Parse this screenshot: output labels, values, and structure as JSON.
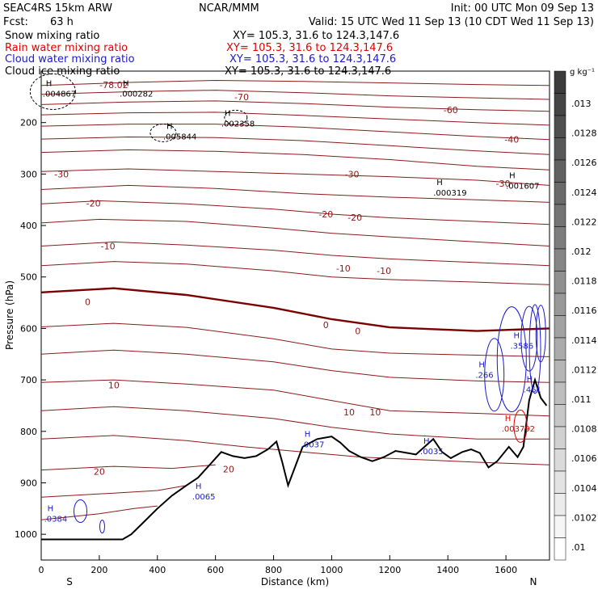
{
  "header": {
    "model": "SEAC4RS 15km ARW",
    "center": "NCAR/MMM",
    "init": "Init: 00 UTC Mon 09 Sep 13",
    "fcst_label": "Fcst:",
    "fcst_value": "63 h",
    "valid": "Valid: 15 UTC Wed 11 Sep 13 (10 CDT Wed 11 Sep 13)"
  },
  "fields": [
    {
      "name": "Snow mixing ratio",
      "xy": "XY= 105.3, 31.6 to 124.3,147.6",
      "color": "#000000"
    },
    {
      "name": "Rain water mixing ratio",
      "xy": "XY= 105.3, 31.6 to 124.3,147.6",
      "color": "#e00000"
    },
    {
      "name": "Cloud water mixing ratio",
      "xy": "XY= 105.3, 31.6 to 124.3,147.6",
      "color": "#1a1acd"
    },
    {
      "name": "Cloud ice mixing ratio",
      "xy": "XY= 105.3, 31.6 to 124.3,147.6",
      "color": "#000000"
    }
  ],
  "chart_data": {
    "type": "cross-section",
    "xlabel": "Distance (km)",
    "ylabel": "Pressure (hPa)",
    "xlim": [
      0,
      1750
    ],
    "ylim": [
      1050,
      100
    ],
    "x_ticks": [
      0,
      200,
      400,
      600,
      800,
      1000,
      1200,
      1400,
      1600
    ],
    "y_ticks": [
      200,
      300,
      400,
      500,
      600,
      700,
      800,
      900,
      1000
    ],
    "end_labels": {
      "left": "S",
      "right": "N"
    },
    "colorbar": {
      "unit": "g kg⁻¹",
      "labels": [
        ".013",
        ".0128",
        ".0126",
        ".0124",
        ".0122",
        ".012",
        ".0118",
        ".0116",
        ".0114",
        ".0112",
        ".011",
        ".0108",
        ".0106",
        ".0104",
        ".0102",
        ".01"
      ]
    },
    "temperature_contour_labels": [
      {
        "text": "-78.02",
        "x": 250,
        "p": 127
      },
      {
        "text": "-70",
        "x": 690,
        "p": 150
      },
      {
        "text": "-60",
        "x": 1410,
        "p": 175
      },
      {
        "text": "-40",
        "x": 1620,
        "p": 233
      },
      {
        "text": "-30",
        "x": 70,
        "p": 300
      },
      {
        "text": "-30",
        "x": 1070,
        "p": 300
      },
      {
        "text": "-30",
        "x": 1590,
        "p": 318
      },
      {
        "text": "-20",
        "x": 180,
        "p": 357
      },
      {
        "text": "-20",
        "x": 980,
        "p": 378
      },
      {
        "text": "-20",
        "x": 1080,
        "p": 384
      },
      {
        "text": "-10",
        "x": 230,
        "p": 440
      },
      {
        "text": "-10",
        "x": 1040,
        "p": 483
      },
      {
        "text": "-10",
        "x": 1180,
        "p": 488
      },
      {
        "text": "0",
        "x": 160,
        "p": 548
      },
      {
        "text": "0",
        "x": 980,
        "p": 593
      },
      {
        "text": "0",
        "x": 1090,
        "p": 605
      },
      {
        "text": "10",
        "x": 250,
        "p": 710
      },
      {
        "text": "10",
        "x": 1060,
        "p": 763
      },
      {
        "text": "10",
        "x": 1150,
        "p": 763
      },
      {
        "text": "20",
        "x": 200,
        "p": 878
      },
      {
        "text": "20",
        "x": 645,
        "p": 873
      }
    ],
    "maxima": [
      {
        "label": "H",
        "value": ".004867",
        "x": 5,
        "p": 137,
        "color": "#000000"
      },
      {
        "label": "H",
        "value": ".000282",
        "x": 270,
        "p": 137,
        "color": "#000000"
      },
      {
        "label": "H",
        "value": ".002358",
        "x": 620,
        "p": 195,
        "color": "#000000"
      },
      {
        "label": "H",
        "value": ".005844",
        "x": 420,
        "p": 220,
        "color": "#000000"
      },
      {
        "label": "H",
        "value": ".000319",
        "x": 1350,
        "p": 329,
        "color": "#000000"
      },
      {
        "label": "H",
        "value": ".001607",
        "x": 1600,
        "p": 316,
        "color": "#000000"
      },
      {
        "label": "H",
        "value": ".3586",
        "x": 1615,
        "p": 627,
        "color": "#1a1acd"
      },
      {
        "label": "H",
        "value": ".266",
        "x": 1495,
        "p": 683,
        "color": "#1a1acd"
      },
      {
        "label": "H",
        "value": ".461",
        "x": 1660,
        "p": 712,
        "color": "#1a1acd"
      },
      {
        "label": "H",
        "value": ".003792",
        "x": 1585,
        "p": 788,
        "color": "#e00000"
      },
      {
        "label": "H",
        "value": ".0037",
        "x": 895,
        "p": 818,
        "color": "#1a1acd"
      },
      {
        "label": "H",
        "value": ".0035",
        "x": 1305,
        "p": 832,
        "color": "#1a1acd"
      },
      {
        "label": "H",
        "value": ".0065",
        "x": 520,
        "p": 920,
        "color": "#1a1acd"
      },
      {
        "label": "H",
        "value": ".0384",
        "x": 10,
        "p": 963,
        "color": "#1a1acd"
      }
    ],
    "terrain": [
      [
        0,
        1010
      ],
      [
        280,
        1010
      ],
      [
        310,
        1000
      ],
      [
        350,
        978
      ],
      [
        400,
        950
      ],
      [
        450,
        925
      ],
      [
        500,
        905
      ],
      [
        540,
        890
      ],
      [
        580,
        865
      ],
      [
        620,
        840
      ],
      [
        660,
        848
      ],
      [
        700,
        852
      ],
      [
        740,
        848
      ],
      [
        780,
        835
      ],
      [
        810,
        820
      ],
      [
        830,
        860
      ],
      [
        850,
        905
      ],
      [
        870,
        875
      ],
      [
        900,
        830
      ],
      [
        950,
        815
      ],
      [
        1000,
        810
      ],
      [
        1030,
        822
      ],
      [
        1060,
        838
      ],
      [
        1100,
        850
      ],
      [
        1140,
        858
      ],
      [
        1180,
        850
      ],
      [
        1220,
        838
      ],
      [
        1260,
        842
      ],
      [
        1290,
        845
      ],
      [
        1320,
        830
      ],
      [
        1350,
        815
      ],
      [
        1380,
        840
      ],
      [
        1410,
        852
      ],
      [
        1450,
        840
      ],
      [
        1480,
        835
      ],
      [
        1510,
        842
      ],
      [
        1540,
        870
      ],
      [
        1570,
        858
      ],
      [
        1610,
        830
      ],
      [
        1640,
        850
      ],
      [
        1660,
        830
      ],
      [
        1680,
        740
      ],
      [
        1700,
        700
      ],
      [
        1720,
        735
      ],
      [
        1740,
        750
      ]
    ],
    "isotherms_hPa": [
      [
        [
          0,
          128
        ],
        [
          300,
          122
        ],
        [
          600,
          118
        ],
        [
          900,
          120
        ],
        [
          1200,
          123
        ],
        [
          1500,
          126
        ],
        [
          1750,
          128
        ]
      ],
      [
        [
          0,
          145
        ],
        [
          300,
          140
        ],
        [
          600,
          137
        ],
        [
          900,
          142
        ],
        [
          1200,
          148
        ],
        [
          1500,
          152
        ],
        [
          1750,
          155
        ]
      ],
      [
        [
          0,
          165
        ],
        [
          300,
          160
        ],
        [
          600,
          158
        ],
        [
          900,
          163
        ],
        [
          1200,
          170
        ],
        [
          1500,
          175
        ],
        [
          1750,
          178
        ]
      ],
      [
        [
          0,
          185
        ],
        [
          300,
          181
        ],
        [
          600,
          180
        ],
        [
          900,
          186
        ],
        [
          1200,
          193
        ],
        [
          1500,
          200
        ],
        [
          1750,
          205
        ]
      ],
      [
        [
          0,
          207
        ],
        [
          300,
          203
        ],
        [
          600,
          203
        ],
        [
          900,
          209
        ],
        [
          1200,
          218
        ],
        [
          1500,
          227
        ],
        [
          1750,
          233
        ]
      ],
      [
        [
          0,
          232
        ],
        [
          300,
          228
        ],
        [
          600,
          229
        ],
        [
          900,
          235
        ],
        [
          1200,
          245
        ],
        [
          1500,
          255
        ],
        [
          1750,
          262
        ]
      ],
      [
        [
          0,
          258
        ],
        [
          300,
          253
        ],
        [
          600,
          256
        ],
        [
          900,
          262
        ],
        [
          1200,
          272
        ],
        [
          1500,
          285
        ],
        [
          1750,
          292
        ]
      ],
      [
        [
          0,
          295
        ],
        [
          300,
          290
        ],
        [
          600,
          295
        ],
        [
          900,
          300
        ],
        [
          1200,
          305
        ],
        [
          1500,
          312
        ],
        [
          1750,
          322
        ]
      ],
      [
        [
          0,
          330
        ],
        [
          300,
          322
        ],
        [
          600,
          328
        ],
        [
          900,
          338
        ],
        [
          1200,
          345
        ],
        [
          1500,
          350
        ],
        [
          1750,
          355
        ]
      ],
      [
        [
          0,
          358
        ],
        [
          200,
          352
        ],
        [
          500,
          358
        ],
        [
          800,
          368
        ],
        [
          1000,
          378
        ],
        [
          1200,
          385
        ],
        [
          1500,
          392
        ],
        [
          1750,
          398
        ]
      ],
      [
        [
          0,
          395
        ],
        [
          200,
          388
        ],
        [
          500,
          392
        ],
        [
          800,
          405
        ],
        [
          1000,
          415
        ],
        [
          1200,
          422
        ],
        [
          1500,
          432
        ],
        [
          1750,
          440
        ]
      ],
      [
        [
          0,
          440
        ],
        [
          250,
          432
        ],
        [
          500,
          438
        ],
        [
          800,
          448
        ],
        [
          1000,
          458
        ],
        [
          1200,
          465
        ],
        [
          1500,
          472
        ],
        [
          1750,
          478
        ]
      ],
      [
        [
          0,
          478
        ],
        [
          250,
          470
        ],
        [
          500,
          475
        ],
        [
          800,
          488
        ],
        [
          1000,
          500
        ],
        [
          1200,
          505
        ],
        [
          1500,
          510
        ],
        [
          1750,
          515
        ]
      ],
      [
        [
          0,
          530
        ],
        [
          250,
          522
        ],
        [
          500,
          535
        ],
        [
          800,
          560
        ],
        [
          1000,
          582
        ],
        [
          1200,
          598
        ],
        [
          1500,
          605
        ],
        [
          1750,
          600
        ]
      ],
      [
        [
          0,
          597
        ],
        [
          250,
          590
        ],
        [
          500,
          598
        ],
        [
          800,
          620
        ],
        [
          1000,
          640
        ],
        [
          1200,
          648
        ],
        [
          1500,
          652
        ],
        [
          1750,
          655
        ]
      ],
      [
        [
          0,
          650
        ],
        [
          250,
          642
        ],
        [
          500,
          650
        ],
        [
          800,
          665
        ],
        [
          1000,
          682
        ],
        [
          1200,
          695
        ],
        [
          1500,
          702
        ],
        [
          1750,
          705
        ]
      ],
      [
        [
          0,
          705
        ],
        [
          250,
          700
        ],
        [
          500,
          708
        ],
        [
          800,
          720
        ],
        [
          1000,
          740
        ],
        [
          1200,
          760
        ],
        [
          1500,
          765
        ],
        [
          1750,
          770
        ]
      ],
      [
        [
          0,
          760
        ],
        [
          250,
          752
        ],
        [
          500,
          760
        ],
        [
          800,
          775
        ],
        [
          1000,
          792
        ],
        [
          1200,
          805
        ],
        [
          1500,
          815
        ],
        [
          1750,
          815
        ]
      ],
      [
        [
          0,
          815
        ],
        [
          250,
          808
        ],
        [
          500,
          818
        ],
        [
          700,
          830
        ],
        [
          900,
          840
        ],
        [
          1100,
          850
        ],
        [
          1300,
          855
        ],
        [
          1500,
          860
        ],
        [
          1750,
          865
        ]
      ],
      [
        [
          0,
          875
        ],
        [
          250,
          868
        ],
        [
          450,
          872
        ],
        [
          600,
          865
        ]
      ],
      [
        [
          0,
          928
        ],
        [
          250,
          920
        ],
        [
          400,
          915
        ],
        [
          500,
          905
        ]
      ],
      [
        [
          0,
          972
        ],
        [
          200,
          960
        ],
        [
          320,
          950
        ],
        [
          400,
          945
        ]
      ]
    ]
  }
}
